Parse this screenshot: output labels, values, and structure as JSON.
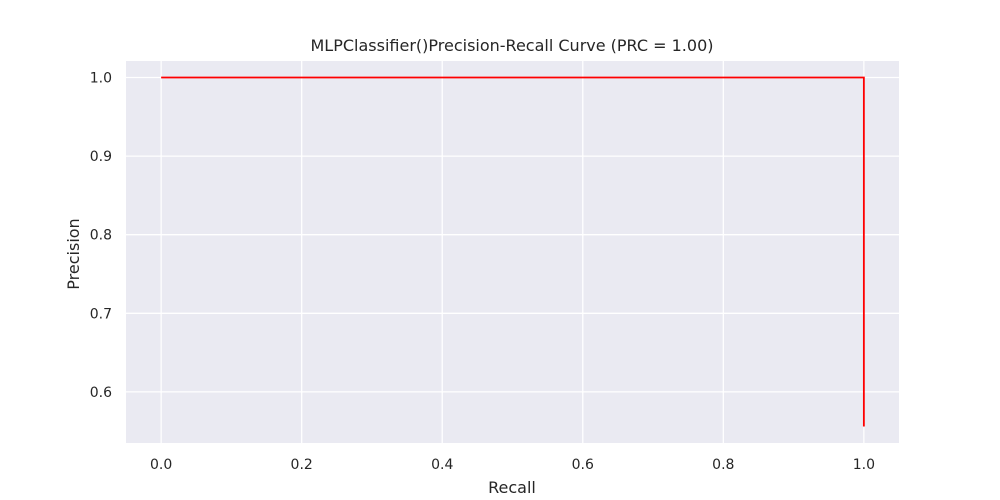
{
  "chart_data": {
    "type": "line",
    "title": "MLPClassifier()Precision-Recall Curve (PRC = 1.00)",
    "xlabel": "Recall",
    "ylabel": "Precision",
    "xlim": [
      -0.05,
      1.05
    ],
    "ylim": [
      0.535,
      1.021
    ],
    "grid": true,
    "legend": "none",
    "xticks": [
      0.0,
      0.2,
      0.4,
      0.6,
      0.8,
      1.0
    ],
    "xtick_labels": [
      "0.0",
      "0.2",
      "0.4",
      "0.6",
      "0.8",
      "1.0"
    ],
    "yticks": [
      0.6,
      0.7,
      0.8,
      0.9,
      1.0
    ],
    "ytick_labels": [
      "0.6",
      "0.7",
      "0.8",
      "0.9",
      "1.0"
    ],
    "series": [
      {
        "color": "#ff0000",
        "x": [
          0.0,
          1.0,
          1.0
        ],
        "y": [
          1.0,
          1.0,
          0.556
        ]
      }
    ],
    "colors": {
      "plot_background": "#eaeaf2",
      "grid": "#ffffff",
      "curve": "#ff0000"
    }
  }
}
